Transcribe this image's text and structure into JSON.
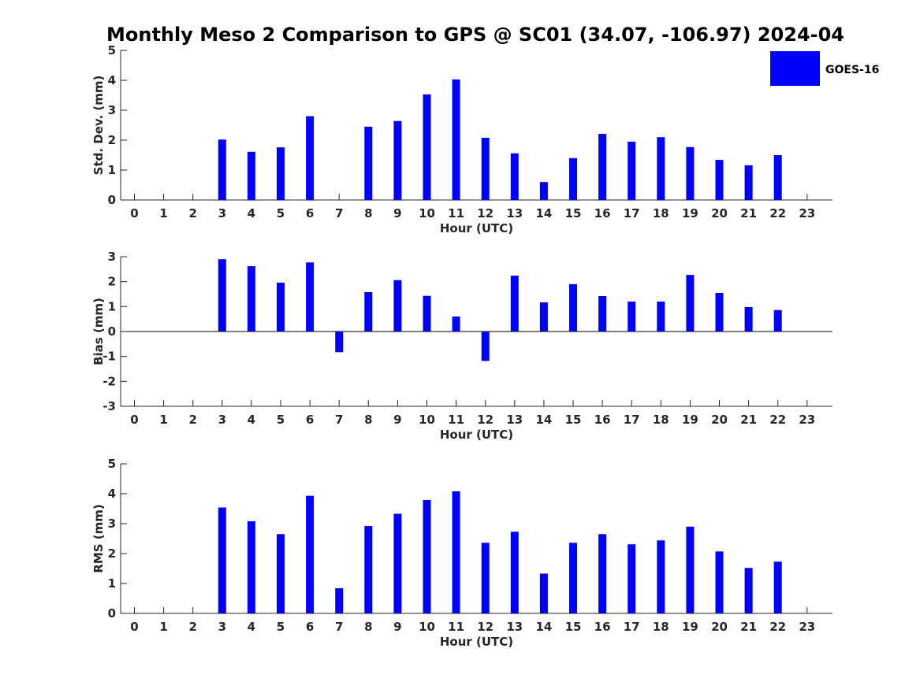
{
  "chart_data": {
    "title": "Monthly Meso 2 Comparison to GPS @ SC01 (34.07, -106.97) 2024-04",
    "type": "bar",
    "legend": {
      "placement": "top-right",
      "entries": [
        {
          "name": "GOES-16",
          "color": "#0000ff"
        }
      ]
    },
    "bar_color": "#0000ff",
    "panels": [
      {
        "ylabel": "Std. Dev. (mm)",
        "xlabel": "Hour (UTC)",
        "ylim": [
          0,
          5
        ],
        "yticks": [
          0,
          1,
          2,
          3,
          4,
          5
        ],
        "categories": [
          "0",
          "1",
          "2",
          "3",
          "4",
          "5",
          "6",
          "7",
          "8",
          "9",
          "10",
          "11",
          "12",
          "13",
          "14",
          "15",
          "16",
          "17",
          "18",
          "19",
          "20",
          "21",
          "22",
          "23"
        ],
        "series": [
          {
            "name": "GOES-16",
            "values": [
              null,
              null,
              null,
              2.02,
              1.61,
              1.76,
              2.8,
              null,
              2.45,
              2.64,
              3.53,
              4.03,
              2.08,
              1.56,
              0.6,
              1.4,
              2.21,
              1.95,
              2.1,
              1.77,
              1.34,
              1.16,
              1.5,
              null
            ]
          }
        ]
      },
      {
        "ylabel": "Bias (mm)",
        "xlabel": "Hour (UTC)",
        "ylim": [
          -3,
          3
        ],
        "yticks": [
          -3,
          -2,
          -1,
          0,
          1,
          2,
          3
        ],
        "categories": [
          "0",
          "1",
          "2",
          "3",
          "4",
          "5",
          "6",
          "7",
          "8",
          "9",
          "10",
          "11",
          "12",
          "13",
          "14",
          "15",
          "16",
          "17",
          "18",
          "19",
          "20",
          "21",
          "22",
          "23"
        ],
        "series": [
          {
            "name": "GOES-16",
            "values": [
              null,
              null,
              null,
              2.9,
              2.62,
              1.96,
              2.77,
              -0.83,
              1.58,
              2.06,
              1.43,
              0.6,
              -1.18,
              2.24,
              1.17,
              1.9,
              1.42,
              1.2,
              1.2,
              2.27,
              1.55,
              0.98,
              0.86,
              null
            ]
          }
        ]
      },
      {
        "ylabel": "RMS (mm)",
        "xlabel": "Hour (UTC)",
        "ylim": [
          0,
          5
        ],
        "yticks": [
          0,
          1,
          2,
          3,
          4,
          5
        ],
        "categories": [
          "0",
          "1",
          "2",
          "3",
          "4",
          "5",
          "6",
          "7",
          "8",
          "9",
          "10",
          "11",
          "12",
          "13",
          "14",
          "15",
          "16",
          "17",
          "18",
          "19",
          "20",
          "21",
          "22",
          "23"
        ],
        "series": [
          {
            "name": "GOES-16",
            "values": [
              null,
              null,
              null,
              3.54,
              3.08,
              2.65,
              3.93,
              0.84,
              2.92,
              3.33,
              3.79,
              4.08,
              2.36,
              2.73,
              1.33,
              2.36,
              2.65,
              2.31,
              2.44,
              2.9,
              2.07,
              1.52,
              1.73,
              null
            ]
          }
        ]
      }
    ]
  }
}
